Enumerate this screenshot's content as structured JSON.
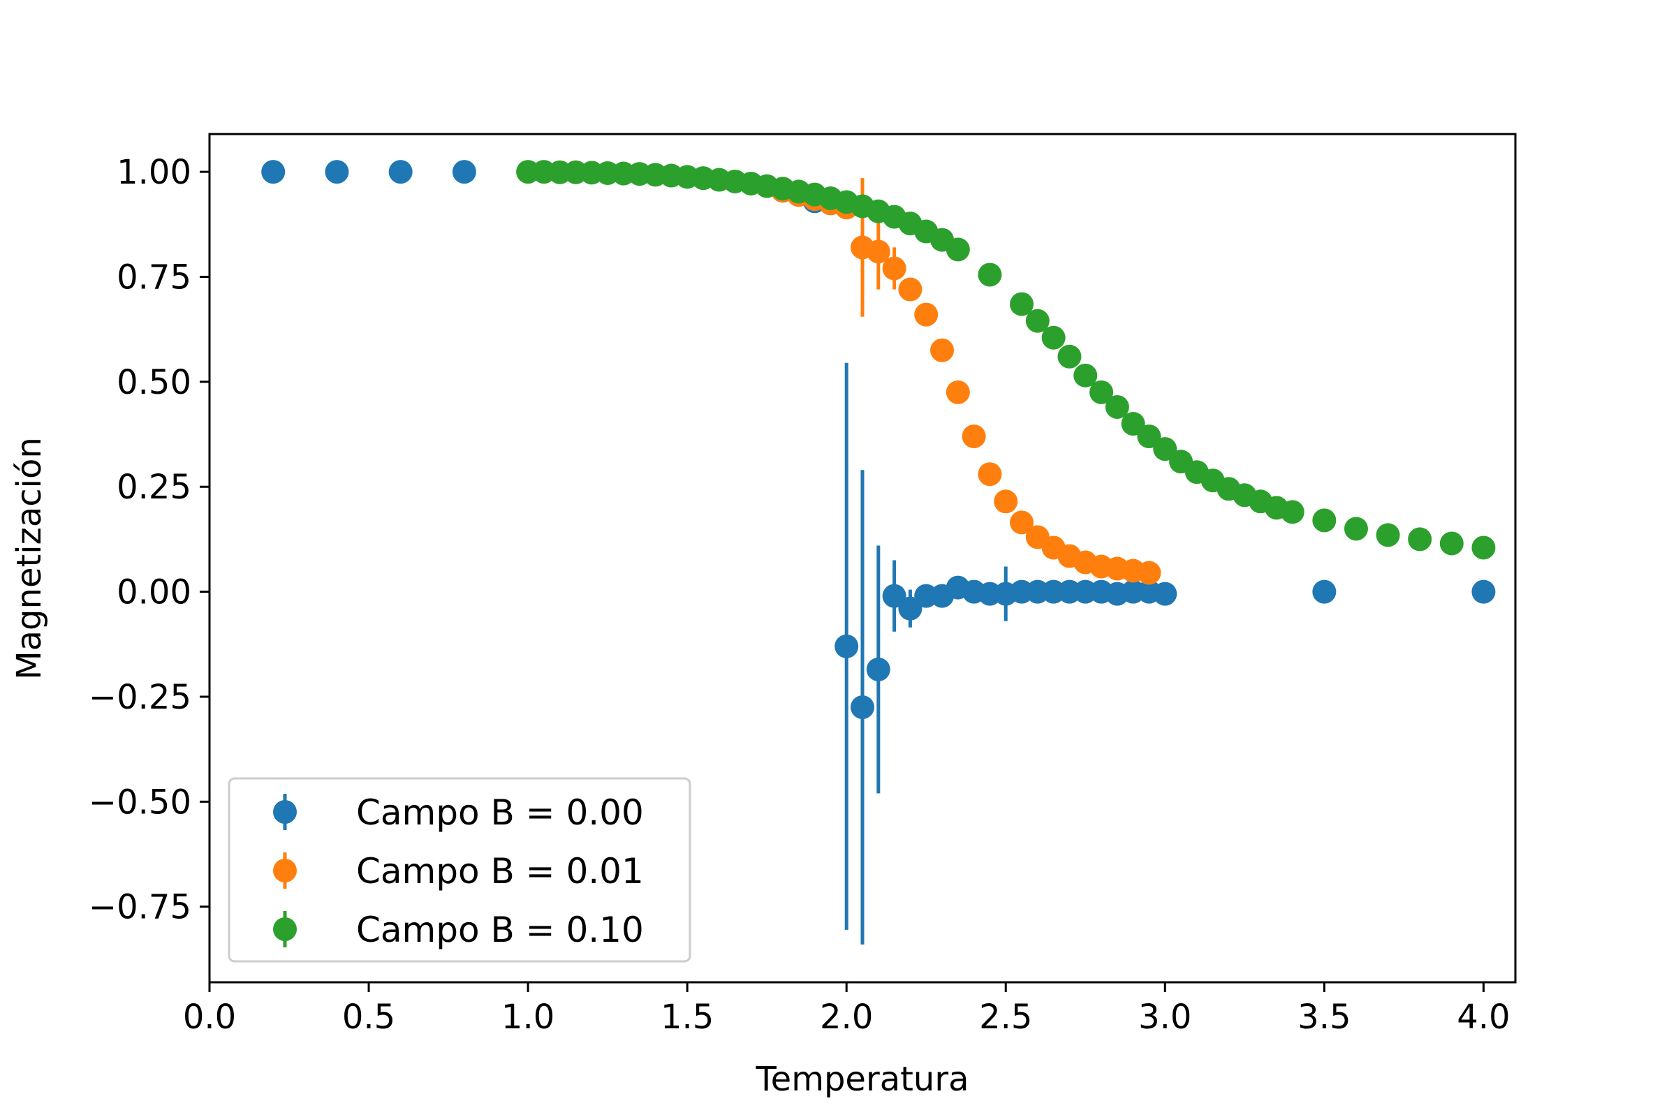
{
  "chart_data": {
    "type": "scatter",
    "title": "",
    "xlabel": "Temperatura",
    "ylabel": "Magnetización",
    "xlim": [
      0.0,
      4.1
    ],
    "ylim": [
      -0.93,
      1.09
    ],
    "xticks": [
      0.0,
      0.5,
      1.0,
      1.5,
      2.0,
      2.5,
      3.0,
      3.5,
      4.0
    ],
    "xtick_labels": [
      "0.0",
      "0.5",
      "1.0",
      "1.5",
      "2.0",
      "2.5",
      "3.0",
      "3.5",
      "4.0"
    ],
    "yticks": [
      1.0,
      0.75,
      0.5,
      0.25,
      0.0,
      -0.25,
      -0.5,
      -0.75
    ],
    "ytick_labels": [
      "1.00",
      "0.75",
      "0.50",
      "0.25",
      "0.00",
      "−0.25",
      "−0.50",
      "−0.75"
    ],
    "grid": false,
    "legend_position": "lower-left",
    "series": [
      {
        "name": "Campo B = 0.00",
        "color": "#1f77b4",
        "x": [
          0.2,
          0.4,
          0.6,
          0.8,
          1.8,
          1.85,
          1.9,
          1.95,
          2.0,
          2.05,
          2.1,
          2.15,
          2.2,
          2.25,
          2.3,
          2.35,
          2.4,
          2.45,
          2.5,
          2.55,
          2.6,
          2.65,
          2.7,
          2.75,
          2.8,
          2.85,
          2.9,
          2.95,
          3.0,
          3.5,
          4.0
        ],
        "y": [
          1.0,
          1.0,
          1.0,
          1.0,
          0.955,
          0.945,
          0.93,
          0.925,
          -0.13,
          -0.275,
          -0.185,
          -0.01,
          -0.04,
          -0.01,
          -0.01,
          0.01,
          0.0,
          -0.005,
          -0.005,
          0.0,
          0.0,
          0.0,
          0.0,
          0.0,
          0.0,
          -0.005,
          0.0,
          0.0,
          -0.005,
          0.0,
          0.0
        ],
        "err": [
          0,
          0,
          0,
          0,
          0,
          0,
          0,
          0,
          0.675,
          0.565,
          0.295,
          0.085,
          0.045,
          0,
          0,
          0,
          0,
          0,
          0.065,
          0,
          0,
          0,
          0,
          0,
          0,
          0,
          0,
          0,
          0,
          0,
          0
        ]
      },
      {
        "name": "Campo B = 0.01",
        "color": "#ff7f0e",
        "x": [
          1.8,
          1.85,
          1.9,
          1.95,
          2.0,
          2.05,
          2.1,
          2.15,
          2.2,
          2.25,
          2.3,
          2.35,
          2.4,
          2.45,
          2.5,
          2.55,
          2.6,
          2.65,
          2.7,
          2.75,
          2.8,
          2.85,
          2.9,
          2.95
        ],
        "y": [
          0.955,
          0.945,
          0.935,
          0.925,
          0.915,
          0.82,
          0.81,
          0.77,
          0.72,
          0.66,
          0.575,
          0.475,
          0.37,
          0.28,
          0.215,
          0.165,
          0.13,
          0.105,
          0.085,
          0.07,
          0.06,
          0.055,
          0.05,
          0.045
        ],
        "err": [
          0,
          0,
          0,
          0,
          0,
          0.165,
          0.09,
          0.05,
          0,
          0,
          0,
          0,
          0,
          0,
          0,
          0,
          0,
          0,
          0,
          0,
          0,
          0,
          0,
          0
        ]
      },
      {
        "name": "Campo B = 0.10",
        "color": "#2ca02c",
        "x": [
          1.0,
          1.05,
          1.1,
          1.15,
          1.2,
          1.25,
          1.3,
          1.35,
          1.4,
          1.45,
          1.5,
          1.55,
          1.6,
          1.65,
          1.7,
          1.75,
          1.8,
          1.85,
          1.9,
          1.95,
          2.0,
          2.05,
          2.1,
          2.15,
          2.2,
          2.25,
          2.3,
          2.35,
          2.45,
          2.55,
          2.6,
          2.65,
          2.7,
          2.75,
          2.8,
          2.85,
          2.9,
          2.95,
          3.0,
          3.05,
          3.1,
          3.15,
          3.2,
          3.25,
          3.3,
          3.35,
          3.4,
          3.5,
          3.6,
          3.7,
          3.8,
          3.9,
          4.0
        ],
        "y": [
          1.0,
          1.0,
          0.999,
          0.999,
          0.998,
          0.997,
          0.996,
          0.995,
          0.993,
          0.991,
          0.988,
          0.985,
          0.981,
          0.977,
          0.972,
          0.966,
          0.96,
          0.953,
          0.946,
          0.937,
          0.928,
          0.918,
          0.906,
          0.893,
          0.877,
          0.858,
          0.838,
          0.815,
          0.755,
          0.685,
          0.645,
          0.605,
          0.56,
          0.515,
          0.475,
          0.44,
          0.4,
          0.37,
          0.34,
          0.31,
          0.285,
          0.265,
          0.245,
          0.23,
          0.215,
          0.2,
          0.19,
          0.17,
          0.15,
          0.135,
          0.125,
          0.115,
          0.105
        ],
        "err": []
      }
    ]
  }
}
